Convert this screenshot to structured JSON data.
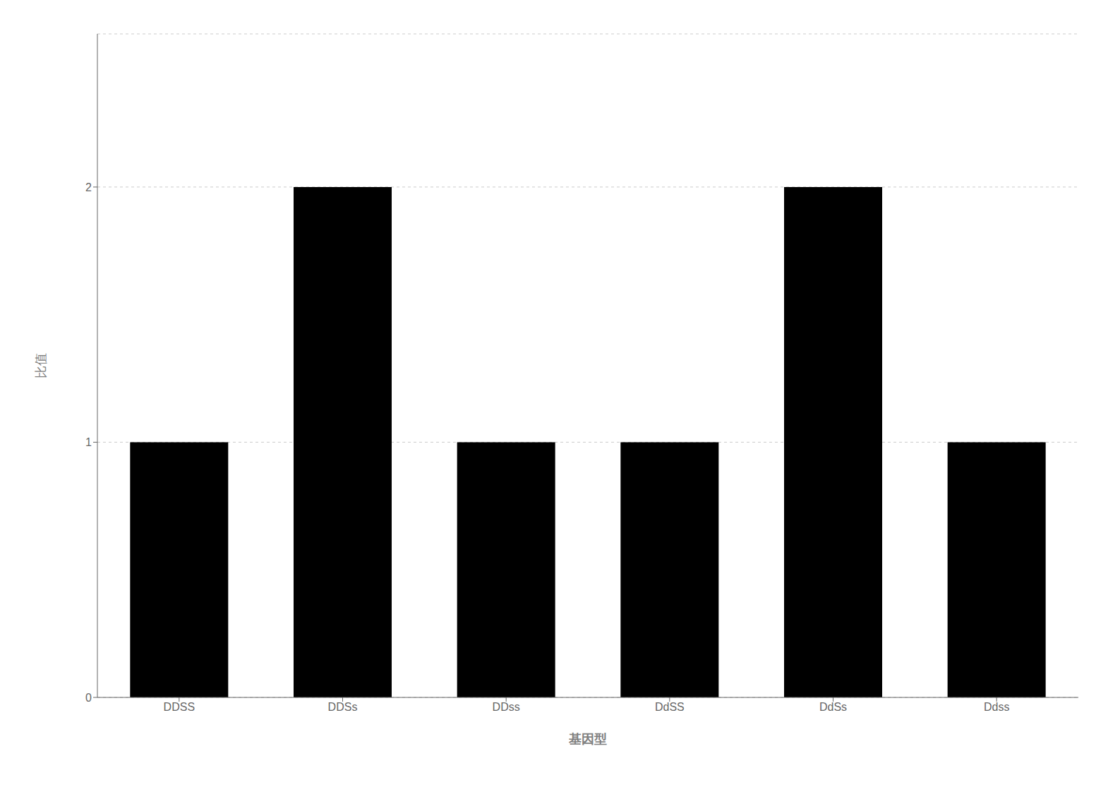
{
  "chart_data": {
    "type": "bar",
    "xlabel": "基因型",
    "ylabel": "比值",
    "categories": [
      "DDSS",
      "DDSs",
      "DDss",
      "DdSS",
      "DdSs",
      "Ddss"
    ],
    "values": [
      1,
      2,
      1,
      1,
      2,
      1
    ],
    "ylim": [
      0,
      2.6
    ],
    "yticks": [
      0,
      1,
      2
    ],
    "grid": true
  }
}
